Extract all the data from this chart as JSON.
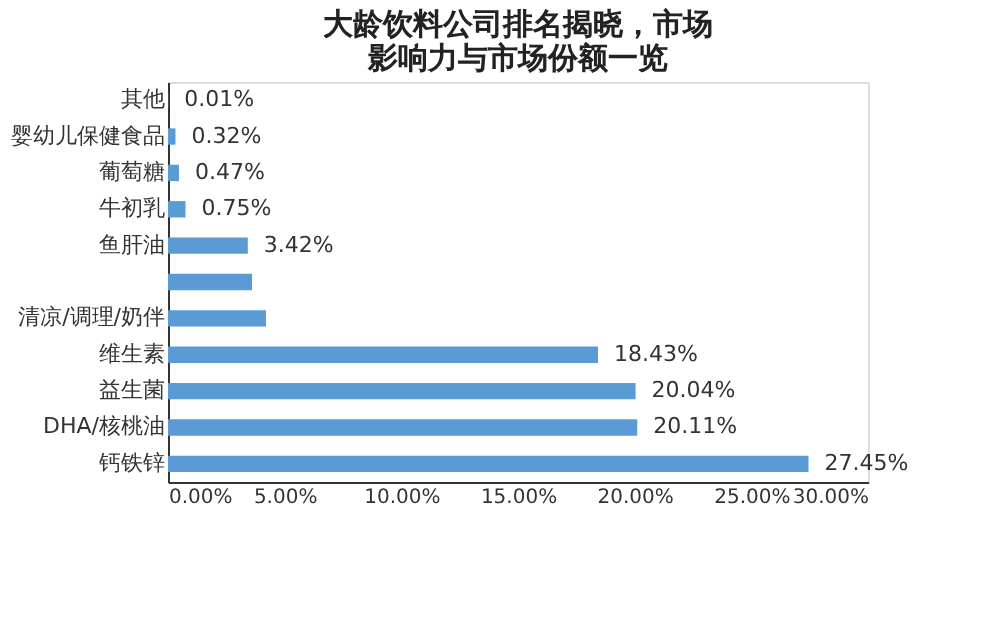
{
  "chart_data": {
    "type": "bar",
    "orientation": "horizontal",
    "title": [
      "大龄饮料公司排名揭晓，市场",
      "影响力与市场份额一览"
    ],
    "categories": [
      "其他",
      "婴幼儿保健食品",
      "葡萄糖",
      "牛初乳",
      "鱼肝油",
      null,
      "清凉/调理/奶伴",
      "维生素",
      "益生菌",
      "DHA/核桃油",
      "钙铁锌"
    ],
    "values": [
      0.01,
      0.32,
      0.47,
      0.75,
      3.42,
      3.6,
      4.2,
      18.43,
      20.04,
      20.11,
      27.45
    ],
    "value_labels": [
      "0.01%",
      "0.32%",
      "0.47%",
      "0.75%",
      "3.42%",
      null,
      null,
      "18.43%",
      "20.04%",
      "20.11%",
      "27.45%"
    ],
    "color": "#5b9bd5",
    "xlim": [
      0,
      30
    ],
    "xticks": [
      {
        "value": 0,
        "label": "0.00%"
      },
      {
        "value": 5,
        "label": "5.00%"
      },
      {
        "value": 10,
        "label": "10.00%"
      },
      {
        "value": 15,
        "label": "15.00%"
      },
      {
        "value": 20,
        "label": "20.00%"
      },
      {
        "value": 25,
        "label": "25.00%"
      },
      {
        "value": 30,
        "label": "30.00%"
      }
    ],
    "grid": false
  }
}
